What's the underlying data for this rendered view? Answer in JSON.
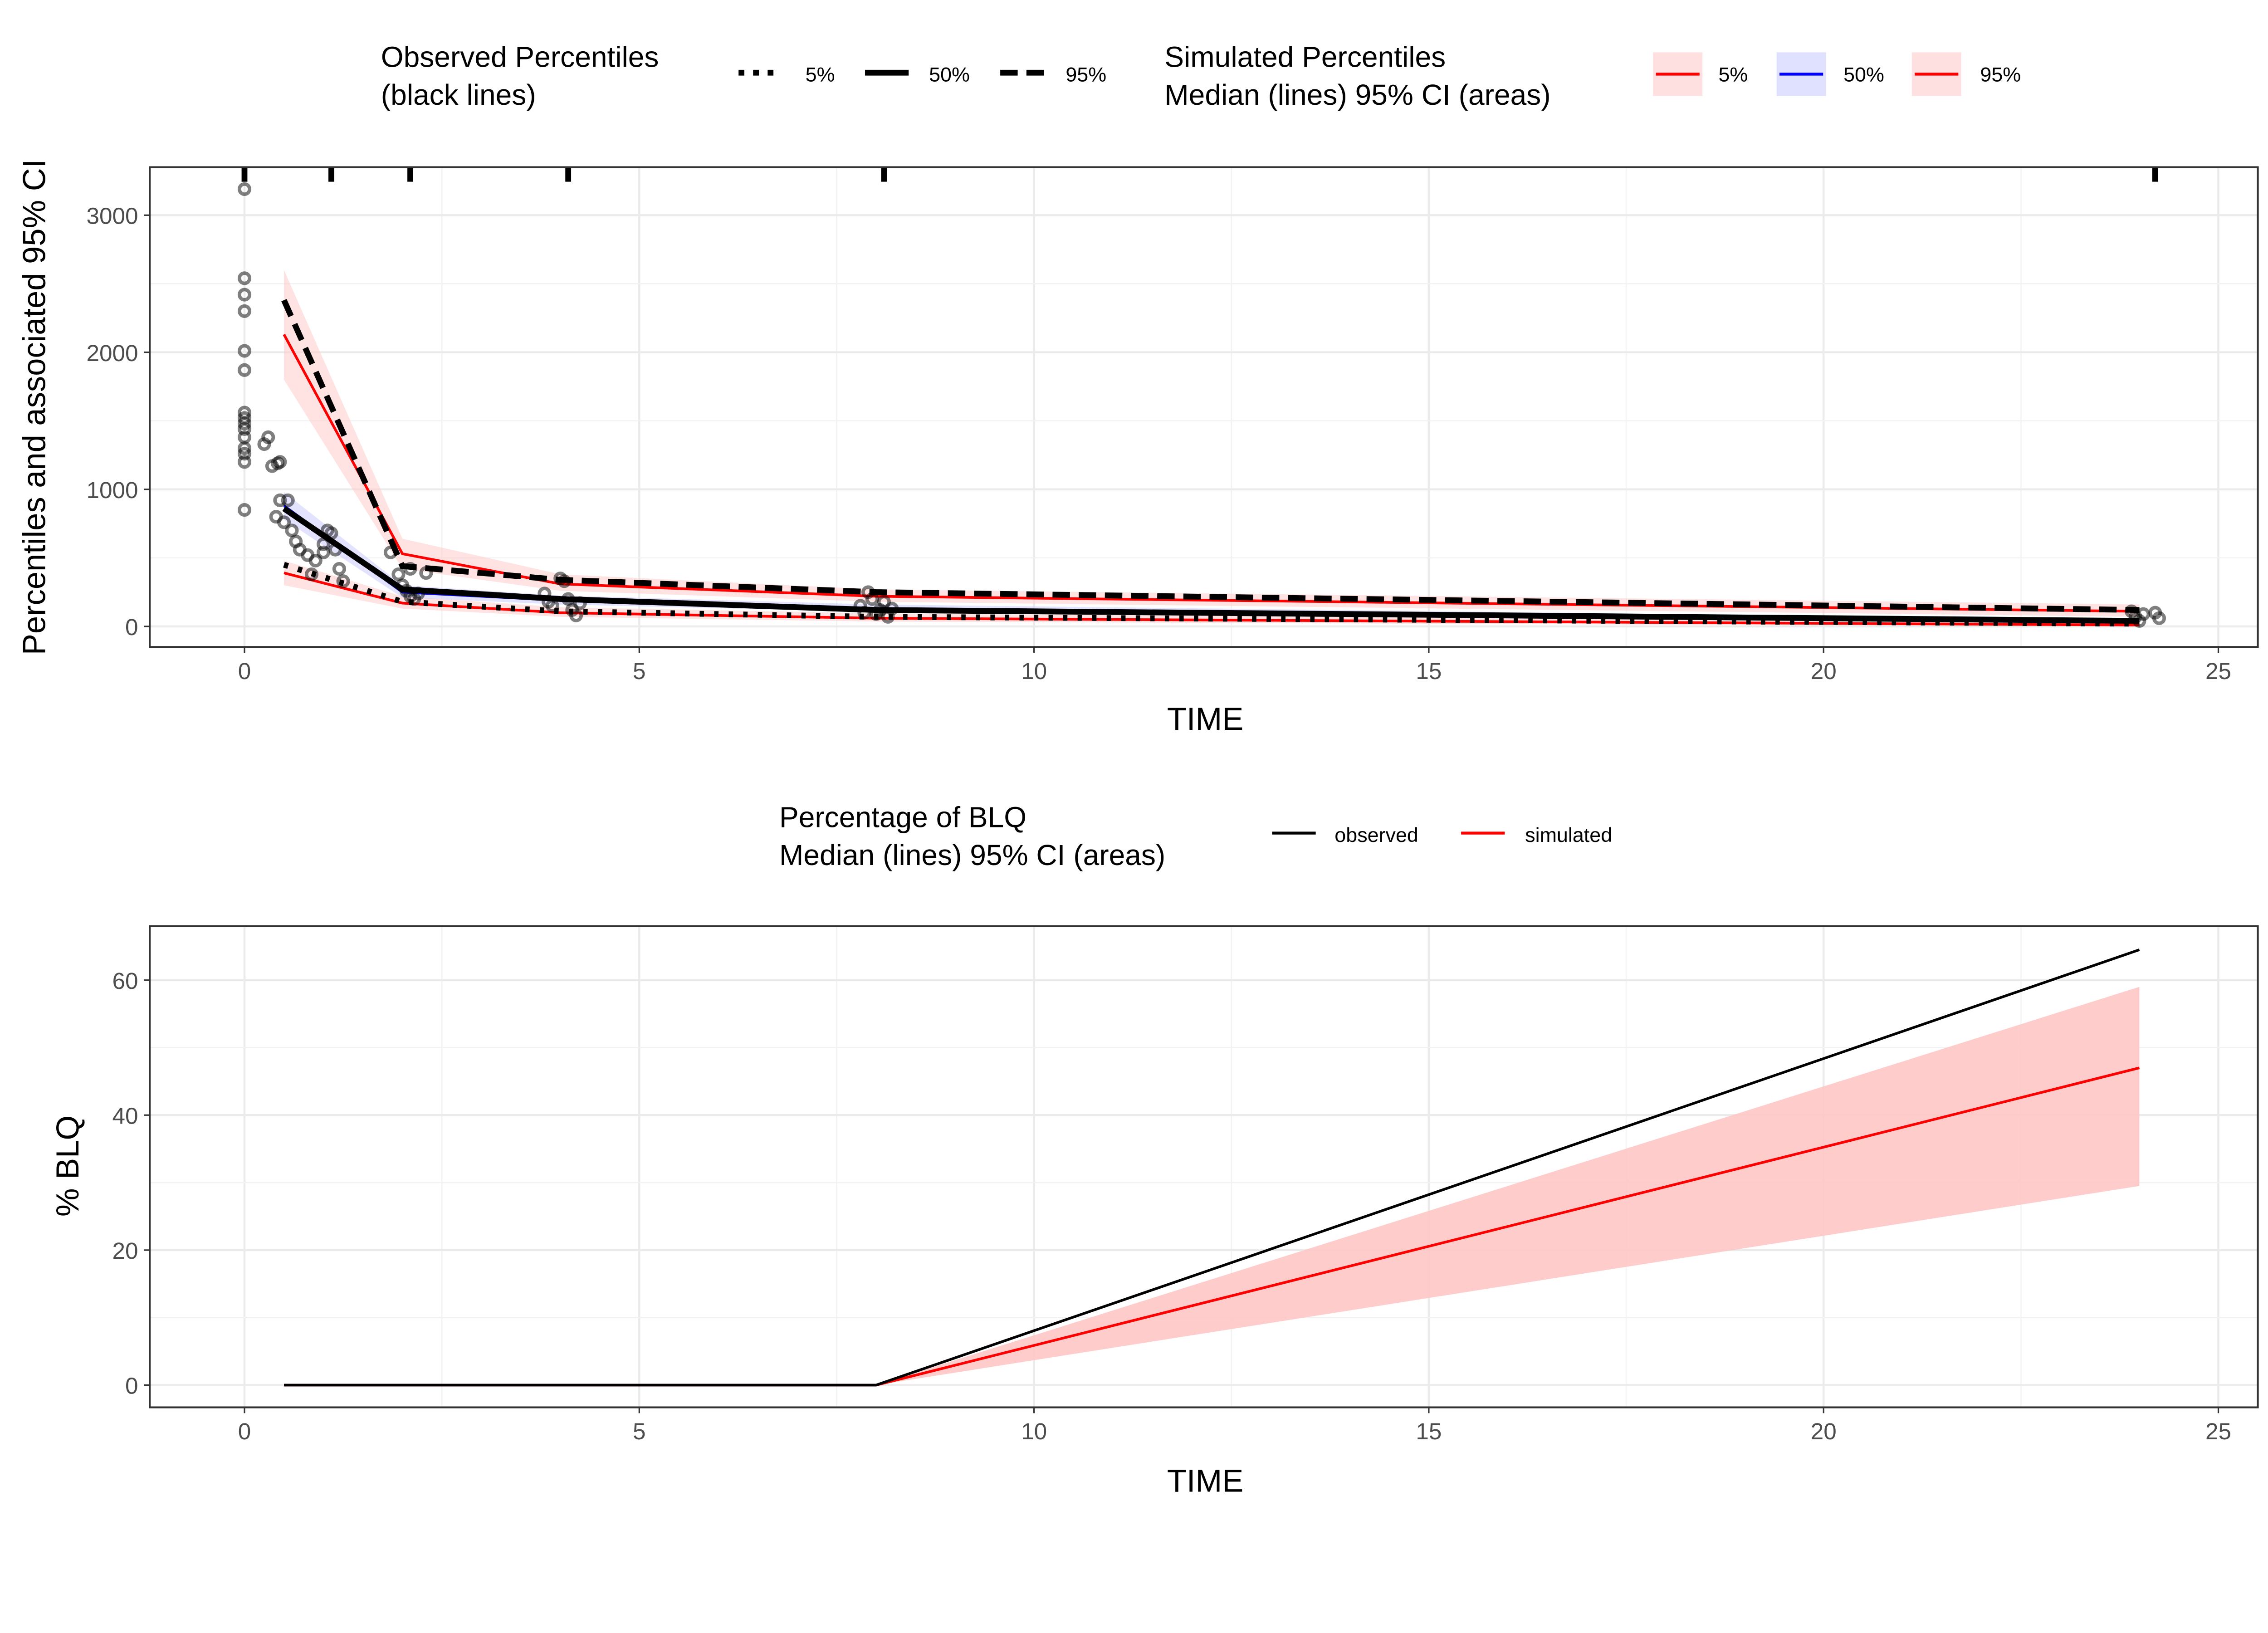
{
  "chart_data": [
    {
      "type": "line",
      "xlabel": "TIME",
      "ylabel": "Percentiles and associated 95% CI",
      "xlim": [
        -1.2,
        25.5
      ],
      "ylim": [
        -150,
        3350
      ],
      "xticks": [
        0,
        5,
        10,
        15,
        20,
        25
      ],
      "yticks": [
        0,
        1000,
        2000,
        3000
      ],
      "grid": true,
      "legend_observed": {
        "title": "Observed Percentiles",
        "subtitle": "(black lines)",
        "entries": [
          "5%",
          "50%",
          "95%"
        ]
      },
      "legend_simulated": {
        "title": "Simulated Percentiles",
        "subtitle": "Median (lines) 95% CI (areas)",
        "entries": [
          "5%",
          "50%",
          "95%"
        ]
      },
      "x": [
        0.5,
        2,
        4,
        8,
        24
      ],
      "simulated": [
        {
          "name": "5%",
          "color": "#ff0000",
          "fill": "#ffcccc",
          "median": [
            390,
            170,
            100,
            60,
            10
          ],
          "lo": [
            300,
            130,
            70,
            35,
            0
          ],
          "hi": [
            480,
            220,
            140,
            95,
            30
          ]
        },
        {
          "name": "50%",
          "color": "#0000ff",
          "fill": "#ccccff",
          "median": [
            880,
            250,
            190,
            130,
            30
          ],
          "lo": [
            780,
            210,
            160,
            105,
            15
          ],
          "hi": [
            980,
            300,
            225,
            160,
            50
          ]
        },
        {
          "name": "95%",
          "color": "#ff0000",
          "fill": "#ffcccc",
          "median": [
            2130,
            530,
            310,
            220,
            110
          ],
          "lo": [
            1800,
            420,
            260,
            180,
            70
          ],
          "hi": [
            2600,
            640,
            380,
            270,
            160
          ]
        }
      ],
      "observed": [
        {
          "name": "5%",
          "dash": "dotted",
          "values": [
            450,
            180,
            110,
            70,
            20
          ]
        },
        {
          "name": "50%",
          "dash": "solid",
          "values": [
            860,
            270,
            200,
            120,
            40
          ]
        },
        {
          "name": "95%",
          "dash": "dashed",
          "values": [
            2380,
            440,
            340,
            250,
            120
          ]
        }
      ],
      "rug_x": [
        0,
        1.1,
        2.1,
        4.1,
        8.1,
        24.2
      ],
      "points": [
        [
          0,
          3190
        ],
        [
          0,
          2540
        ],
        [
          0,
          2420
        ],
        [
          0,
          2300
        ],
        [
          0,
          2010
        ],
        [
          0,
          1870
        ],
        [
          0,
          1560
        ],
        [
          0,
          1520
        ],
        [
          0,
          1480
        ],
        [
          0,
          1440
        ],
        [
          0,
          1380
        ],
        [
          0,
          1300
        ],
        [
          0,
          1260
        ],
        [
          0,
          1200
        ],
        [
          0,
          850
        ],
        [
          0.25,
          1330
        ],
        [
          0.3,
          1380
        ],
        [
          0.35,
          1170
        ],
        [
          0.42,
          1190
        ],
        [
          0.45,
          1200
        ],
        [
          0.4,
          800
        ],
        [
          0.45,
          920
        ],
        [
          0.55,
          920
        ],
        [
          0.5,
          760
        ],
        [
          0.6,
          700
        ],
        [
          0.65,
          620
        ],
        [
          0.7,
          560
        ],
        [
          0.8,
          520
        ],
        [
          0.85,
          380
        ],
        [
          0.9,
          480
        ],
        [
          1.0,
          540
        ],
        [
          1.05,
          700
        ],
        [
          1.1,
          680
        ],
        [
          1.15,
          560
        ],
        [
          1.2,
          420
        ],
        [
          1.25,
          330
        ],
        [
          1.0,
          600
        ],
        [
          1.85,
          540
        ],
        [
          1.95,
          380
        ],
        [
          2.0,
          300
        ],
        [
          2.05,
          260
        ],
        [
          2.1,
          220
        ],
        [
          2.15,
          200
        ],
        [
          2.2,
          240
        ],
        [
          2.1,
          420
        ],
        [
          2.3,
          390
        ],
        [
          3.8,
          240
        ],
        [
          3.85,
          180
        ],
        [
          3.9,
          150
        ],
        [
          4.0,
          350
        ],
        [
          4.05,
          330
        ],
        [
          4.1,
          200
        ],
        [
          4.15,
          120
        ],
        [
          4.2,
          80
        ],
        [
          4.25,
          170
        ],
        [
          7.8,
          150
        ],
        [
          7.85,
          100
        ],
        [
          7.9,
          250
        ],
        [
          7.95,
          200
        ],
        [
          8.0,
          90
        ],
        [
          8.05,
          120
        ],
        [
          8.1,
          180
        ],
        [
          8.15,
          70
        ],
        [
          8.2,
          130
        ],
        [
          23.9,
          110
        ],
        [
          23.95,
          70
        ],
        [
          24.0,
          40
        ],
        [
          24.05,
          90
        ],
        [
          24.2,
          100
        ],
        [
          24.25,
          60
        ]
      ]
    },
    {
      "type": "line",
      "xlabel": "TIME",
      "ylabel": "% BLQ",
      "xlim": [
        -1.2,
        25.5
      ],
      "ylim": [
        -3.3,
        68
      ],
      "xticks": [
        0,
        5,
        10,
        15,
        20,
        25
      ],
      "yticks": [
        0,
        20,
        40,
        60
      ],
      "grid": true,
      "legend": {
        "title": "Percentage of BLQ",
        "subtitle": "Median (lines) 95% CI (areas)",
        "entries": [
          "observed",
          "simulated"
        ]
      },
      "x": [
        0.5,
        2,
        4,
        8,
        24
      ],
      "observed": {
        "color": "#000000",
        "values": [
          0,
          0,
          0,
          0,
          64.5
        ]
      },
      "simulated": {
        "color": "#ff0000",
        "fill": "#ffc6c6",
        "median": [
          0,
          0,
          0,
          0,
          47
        ],
        "lo": [
          0,
          0,
          0,
          0,
          29.5
        ],
        "hi": [
          0,
          0,
          0,
          0,
          59
        ]
      }
    }
  ]
}
